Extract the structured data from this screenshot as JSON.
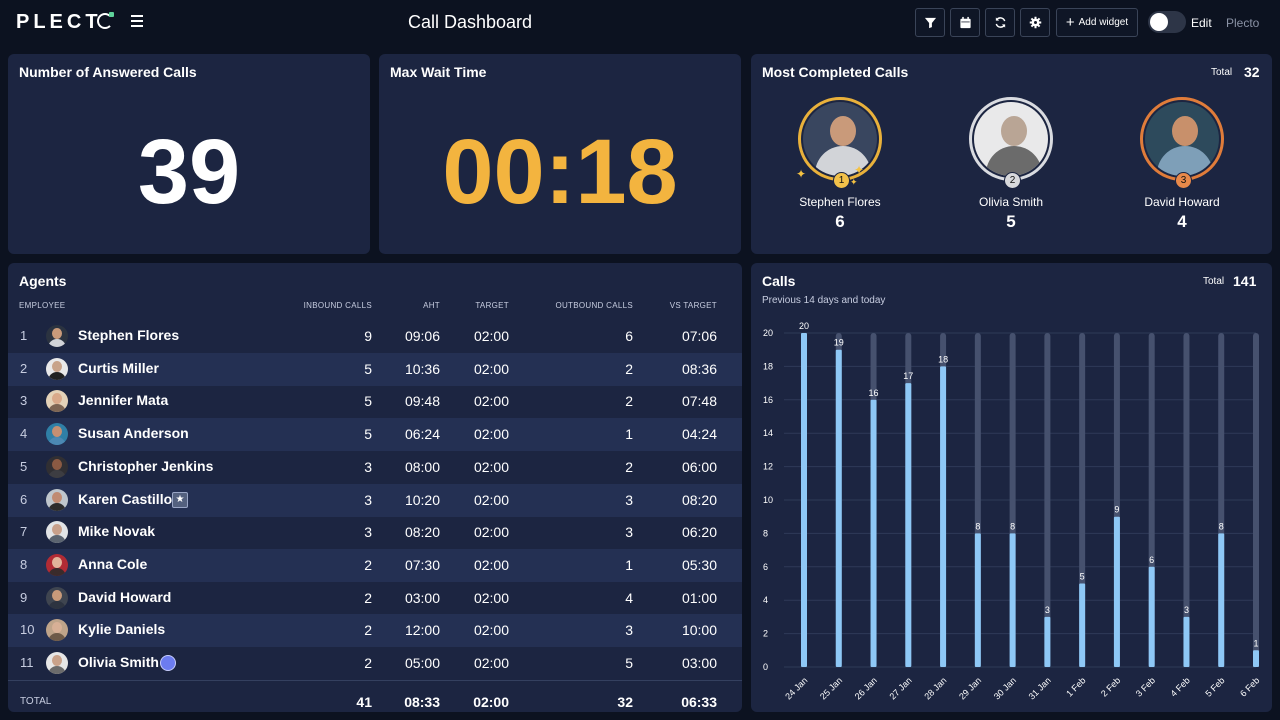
{
  "app": {
    "logo": "PLECT",
    "title": "Call Dashboard",
    "edit_label": "Edit",
    "brand_label": "Plecto",
    "add_widget_label": "Add widget"
  },
  "toolbar": {
    "icons": [
      "filter-icon",
      "calendar-icon",
      "refresh-icon",
      "gear-icon"
    ]
  },
  "answered_calls": {
    "title": "Number of Answered Calls",
    "value": "39"
  },
  "max_wait": {
    "title": "Max Wait Time",
    "value": "00:18",
    "color": "#f3b43f"
  },
  "most_completed": {
    "title": "Most Completed Calls",
    "total_label": "Total",
    "total_value": "32",
    "leaders": [
      {
        "rank": "1",
        "name": "Stephen Flores",
        "value": "6",
        "ring": "#e9b13b"
      },
      {
        "rank": "2",
        "name": "Olivia Smith",
        "value": "5",
        "ring": "#d9dbe0"
      },
      {
        "rank": "3",
        "name": "David Howard",
        "value": "4",
        "ring": "#e07c3a"
      }
    ]
  },
  "agents": {
    "title": "Agents",
    "columns": {
      "employee": "EMPLOYEE",
      "inbound": "INBOUND CALLS",
      "aht": "AHT",
      "target": "TARGET",
      "outbound": "OUTBOUND CALLS",
      "vs": "VS TARGET"
    },
    "rows": [
      {
        "idx": "1",
        "name": "Stephen Flores",
        "inbound": "9",
        "aht": "09:06",
        "target": "02:00",
        "outbound": "6",
        "vs": "07:06"
      },
      {
        "idx": "2",
        "name": "Curtis Miller",
        "inbound": "5",
        "aht": "10:36",
        "target": "02:00",
        "outbound": "2",
        "vs": "08:36"
      },
      {
        "idx": "3",
        "name": "Jennifer Mata",
        "inbound": "5",
        "aht": "09:48",
        "target": "02:00",
        "outbound": "2",
        "vs": "07:48"
      },
      {
        "idx": "4",
        "name": "Susan Anderson",
        "inbound": "5",
        "aht": "06:24",
        "target": "02:00",
        "outbound": "1",
        "vs": "04:24"
      },
      {
        "idx": "5",
        "name": "Christopher Jenkins",
        "inbound": "3",
        "aht": "08:00",
        "target": "02:00",
        "outbound": "2",
        "vs": "06:00"
      },
      {
        "idx": "6",
        "name": "Karen Castillo",
        "inbound": "3",
        "aht": "10:20",
        "target": "02:00",
        "outbound": "3",
        "vs": "08:20"
      },
      {
        "idx": "7",
        "name": "Mike Novak",
        "inbound": "3",
        "aht": "08:20",
        "target": "02:00",
        "outbound": "3",
        "vs": "06:20"
      },
      {
        "idx": "8",
        "name": "Anna Cole",
        "inbound": "2",
        "aht": "07:30",
        "target": "02:00",
        "outbound": "1",
        "vs": "05:30"
      },
      {
        "idx": "9",
        "name": "David Howard",
        "inbound": "2",
        "aht": "03:00",
        "target": "02:00",
        "outbound": "4",
        "vs": "01:00"
      },
      {
        "idx": "10",
        "name": "Kylie Daniels",
        "inbound": "2",
        "aht": "12:00",
        "target": "02:00",
        "outbound": "3",
        "vs": "10:00"
      },
      {
        "idx": "11",
        "name": "Olivia Smith",
        "inbound": "2",
        "aht": "05:00",
        "target": "02:00",
        "outbound": "5",
        "vs": "03:00"
      }
    ],
    "total": {
      "label": "TOTAL",
      "inbound": "41",
      "aht": "08:33",
      "target": "02:00",
      "outbound": "32",
      "vs": "06:33"
    }
  },
  "calls": {
    "title": "Calls",
    "subtitle": "Previous 14 days and today",
    "total_label": "Total",
    "total_value": "141"
  },
  "chart_data": {
    "type": "bar",
    "categories": [
      "24 Jan",
      "25 Jan",
      "26 Jan",
      "27 Jan",
      "28 Jan",
      "29 Jan",
      "30 Jan",
      "31 Jan",
      "1 Feb",
      "2 Feb",
      "3 Feb",
      "4 Feb",
      "5 Feb",
      "6 Feb"
    ],
    "values": [
      20,
      19,
      16,
      17,
      18,
      8,
      8,
      3,
      5,
      9,
      6,
      3,
      8,
      1
    ],
    "ylim": [
      0,
      20
    ],
    "yticks": [
      0,
      2,
      4,
      6,
      8,
      10,
      12,
      14,
      16,
      18,
      20
    ],
    "grid": true,
    "bar_color": "#8ec8f6",
    "track_color": "#46516e"
  }
}
